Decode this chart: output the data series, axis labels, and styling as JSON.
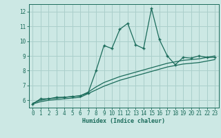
{
  "xlabel": "Humidex (Indice chaleur)",
  "bg_color": "#cce8e4",
  "grid_color": "#aacfcb",
  "line_color": "#1a6b5a",
  "xlim": [
    -0.5,
    23.5
  ],
  "ylim": [
    5.5,
    12.5
  ],
  "xticks": [
    0,
    1,
    2,
    3,
    4,
    5,
    6,
    7,
    8,
    9,
    10,
    11,
    12,
    13,
    14,
    15,
    16,
    17,
    18,
    19,
    20,
    21,
    22,
    23
  ],
  "yticks": [
    6,
    7,
    8,
    9,
    10,
    11,
    12
  ],
  "main_x": [
    0,
    1,
    2,
    3,
    4,
    5,
    6,
    7,
    8,
    9,
    10,
    11,
    12,
    13,
    14,
    15,
    16,
    17,
    18,
    19,
    20,
    21,
    22,
    23
  ],
  "main_y": [
    5.75,
    6.1,
    6.1,
    6.2,
    6.2,
    6.25,
    6.3,
    6.5,
    8.0,
    9.7,
    9.5,
    10.8,
    11.2,
    9.75,
    9.5,
    12.2,
    10.1,
    9.0,
    8.4,
    8.9,
    8.85,
    9.0,
    8.9,
    8.9
  ],
  "line1_x": [
    0,
    1,
    2,
    3,
    4,
    5,
    6,
    7,
    8,
    9,
    10,
    11,
    12,
    13,
    14,
    15,
    16,
    17,
    18,
    19,
    20,
    21,
    22,
    23
  ],
  "line1_y": [
    5.8,
    6.0,
    6.1,
    6.15,
    6.2,
    6.25,
    6.3,
    6.55,
    6.9,
    7.2,
    7.4,
    7.6,
    7.75,
    7.9,
    8.05,
    8.2,
    8.35,
    8.5,
    8.6,
    8.7,
    8.75,
    8.8,
    8.9,
    9.0
  ],
  "line2_x": [
    0,
    1,
    2,
    3,
    4,
    5,
    6,
    7,
    8,
    9,
    10,
    11,
    12,
    13,
    14,
    15,
    16,
    17,
    18,
    19,
    20,
    21,
    22,
    23
  ],
  "line2_y": [
    5.75,
    5.9,
    6.0,
    6.05,
    6.1,
    6.15,
    6.2,
    6.45,
    6.7,
    6.95,
    7.15,
    7.35,
    7.5,
    7.65,
    7.8,
    7.95,
    8.1,
    8.25,
    8.35,
    8.45,
    8.5,
    8.55,
    8.65,
    8.75
  ]
}
